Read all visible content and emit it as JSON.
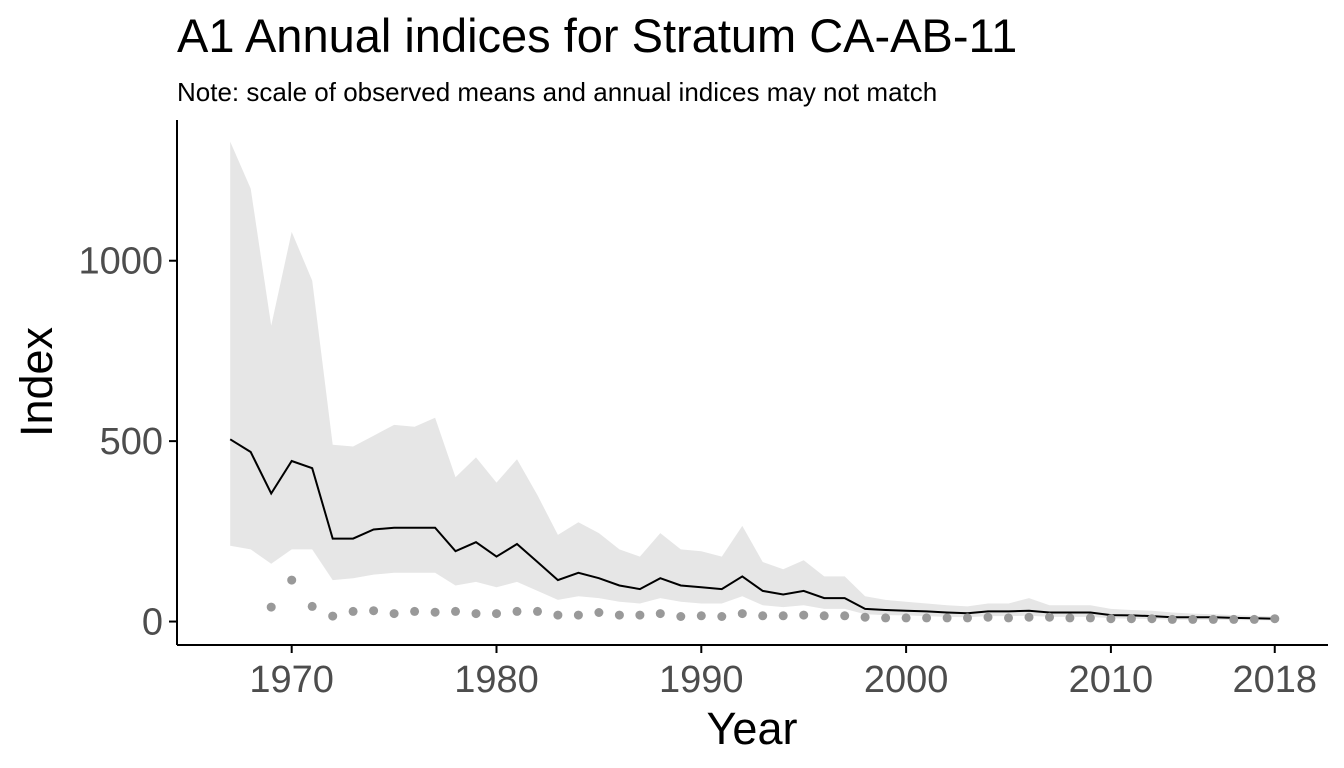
{
  "chart_data": {
    "type": "line",
    "title": "A1 Annual indices for Stratum CA-AB-11",
    "subtitle": "Note: scale of observed means and annual indices may not match",
    "xlabel": "Year",
    "ylabel": "Index",
    "xlim": [
      1964.4,
      2020.6
    ],
    "ylim": [
      -65,
      1390
    ],
    "x_ticks": [
      1970,
      1980,
      1990,
      2000,
      2010,
      2018
    ],
    "y_ticks": [
      0,
      500,
      1000
    ],
    "x_tick_labels": [
      "1970",
      "1980",
      "1990",
      "2000",
      "2010",
      "2018"
    ],
    "y_tick_labels": [
      "0",
      "500",
      "1000"
    ],
    "grid": false,
    "legend": "none",
    "colors": {
      "line": "#000000",
      "band": "#e6e6e6",
      "points": "#999999",
      "tick_text": "#4d4d4d",
      "axis": "#000000"
    },
    "series": [
      {
        "type": "line",
        "x": [
          1967,
          1968,
          1969,
          1970,
          1971,
          1972,
          1973,
          1974,
          1975,
          1976,
          1977,
          1978,
          1979,
          1980,
          1981,
          1982,
          1983,
          1984,
          1985,
          1986,
          1987,
          1988,
          1989,
          1990,
          1991,
          1992,
          1993,
          1994,
          1995,
          1996,
          1997,
          1998,
          1999,
          2000,
          2001,
          2002,
          2003,
          2004,
          2005,
          2006,
          2007,
          2008,
          2009,
          2010,
          2011,
          2012,
          2013,
          2014,
          2015,
          2016,
          2017,
          2018
        ],
        "values": [
          505,
          470,
          355,
          445,
          425,
          230,
          230,
          255,
          260,
          260,
          260,
          195,
          220,
          180,
          215,
          165,
          115,
          135,
          120,
          100,
          90,
          120,
          100,
          95,
          90,
          125,
          85,
          75,
          85,
          65,
          65,
          35,
          32,
          30,
          28,
          25,
          23,
          28,
          28,
          30,
          25,
          25,
          25,
          18,
          17,
          15,
          12,
          12,
          12,
          10,
          9,
          8
        ]
      },
      {
        "type": "band",
        "x": [
          1967,
          1968,
          1969,
          1970,
          1971,
          1972,
          1973,
          1974,
          1975,
          1976,
          1977,
          1978,
          1979,
          1980,
          1981,
          1982,
          1983,
          1984,
          1985,
          1986,
          1987,
          1988,
          1989,
          1990,
          1991,
          1992,
          1993,
          1994,
          1995,
          1996,
          1997,
          1998,
          1999,
          2000,
          2001,
          2002,
          2003,
          2004,
          2005,
          2006,
          2007,
          2008,
          2009,
          2010,
          2011,
          2012,
          2013,
          2014,
          2015,
          2016,
          2017,
          2018
        ],
        "lower": [
          210,
          200,
          160,
          200,
          200,
          115,
          120,
          130,
          135,
          135,
          135,
          100,
          110,
          95,
          110,
          85,
          60,
          70,
          65,
          55,
          50,
          65,
          55,
          50,
          50,
          70,
          45,
          40,
          45,
          35,
          35,
          20,
          18,
          17,
          15,
          13,
          12,
          15,
          15,
          16,
          13,
          13,
          13,
          9,
          8,
          7,
          5,
          5,
          5,
          4,
          4,
          3
        ],
        "upper": [
          1330,
          1200,
          820,
          1080,
          945,
          490,
          485,
          515,
          545,
          540,
          565,
          400,
          455,
          385,
          450,
          350,
          240,
          275,
          245,
          200,
          180,
          245,
          200,
          195,
          180,
          265,
          165,
          145,
          170,
          125,
          125,
          70,
          60,
          55,
          50,
          45,
          42,
          50,
          50,
          65,
          45,
          45,
          45,
          35,
          32,
          30,
          25,
          22,
          20,
          18,
          16,
          14
        ]
      },
      {
        "type": "points",
        "x": [
          1969,
          1970,
          1971,
          1972,
          1973,
          1974,
          1975,
          1976,
          1977,
          1978,
          1979,
          1980,
          1981,
          1982,
          1983,
          1984,
          1985,
          1986,
          1987,
          1988,
          1989,
          1990,
          1991,
          1992,
          1993,
          1994,
          1995,
          1996,
          1997,
          1998,
          1999,
          2000,
          2001,
          2002,
          2003,
          2004,
          2005,
          2006,
          2007,
          2008,
          2009,
          2010,
          2011,
          2012,
          2013,
          2014,
          2015,
          2016,
          2017,
          2018
        ],
        "values": [
          40,
          115,
          42,
          15,
          28,
          30,
          22,
          28,
          26,
          28,
          22,
          22,
          28,
          28,
          18,
          18,
          25,
          18,
          18,
          22,
          14,
          16,
          14,
          22,
          16,
          16,
          18,
          16,
          16,
          12,
          10,
          10,
          10,
          10,
          10,
          12,
          10,
          12,
          12,
          10,
          10,
          8,
          8,
          8,
          6,
          6,
          6,
          6,
          6,
          8
        ]
      }
    ]
  }
}
